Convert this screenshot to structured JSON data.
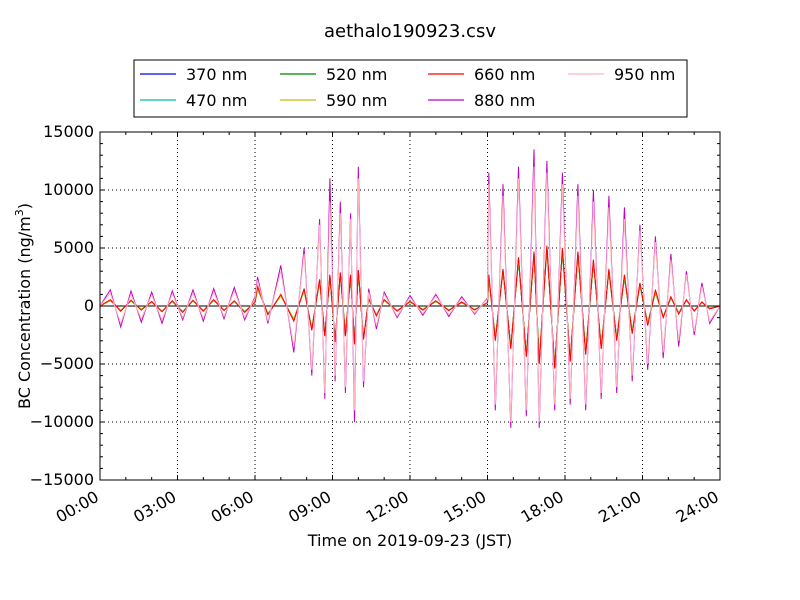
{
  "chart_data": {
    "type": "line",
    "title": "aethalo190923.csv",
    "xlabel": "Time on 2019-09-23 (JST)",
    "ylabel": "BC Concentration (ng/m³)",
    "ylabel_base": "BC Concentration (ng/m",
    "ylabel_sup": "3",
    "ylabel_tail": ")",
    "xlim": [
      "00:00",
      "24:00"
    ],
    "ylim": [
      -15000,
      15000
    ],
    "x_ticks": [
      "00:00",
      "03:00",
      "06:00",
      "09:00",
      "12:00",
      "15:00",
      "18:00",
      "21:00",
      "24:00"
    ],
    "y_ticks": [
      15000,
      10000,
      5000,
      0,
      -5000,
      -10000,
      -15000
    ],
    "y_tick_labels": [
      "15000",
      "10000",
      "5000",
      "0",
      "−5000",
      "−10000",
      "−15000"
    ],
    "grid": true,
    "legend_position": "top",
    "x_hours": [
      0.0,
      0.4,
      0.8,
      1.2,
      1.6,
      2.0,
      2.4,
      2.8,
      3.2,
      3.6,
      4.0,
      4.4,
      4.8,
      5.2,
      5.6,
      6.0,
      6.1,
      6.5,
      7.0,
      7.5,
      7.9,
      8.2,
      8.5,
      8.7,
      8.9,
      9.1,
      9.3,
      9.5,
      9.7,
      9.85,
      10.0,
      10.2,
      10.4,
      10.7,
      11.0,
      11.5,
      12.0,
      12.5,
      13.0,
      13.5,
      14.0,
      14.5,
      15.0,
      15.05,
      15.3,
      15.6,
      15.9,
      16.2,
      16.5,
      16.8,
      17.0,
      17.3,
      17.6,
      17.9,
      18.2,
      18.5,
      18.8,
      19.1,
      19.4,
      19.7,
      20.0,
      20.3,
      20.6,
      20.9,
      21.2,
      21.5,
      21.8,
      22.1,
      22.4,
      22.7,
      23.0,
      23.3,
      23.6,
      24.0
    ],
    "series": [
      {
        "name": "370 nm",
        "color": "#0000ff",
        "values": [
          0,
          500,
          -400,
          450,
          -300,
          350,
          -450,
          400,
          -500,
          450,
          -400,
          500,
          -350,
          400,
          -500,
          300,
          1500,
          -700,
          900,
          -1200,
          1400,
          -2000,
          2200,
          -2500,
          2600,
          -3000,
          2800,
          -2500,
          2600,
          -3200,
          3000,
          -2800,
          600,
          -800,
          500,
          -400,
          350,
          -300,
          400,
          -350,
          300,
          -300,
          250,
          2500,
          -2800,
          3000,
          -3500,
          4000,
          -4200,
          4500,
          -4800,
          5000,
          -5200,
          4800,
          -4600,
          4500,
          -4000,
          3800,
          -3500,
          3000,
          -2800,
          2500,
          -2200,
          1800,
          -1500,
          1200,
          -900,
          700,
          -600,
          500,
          -400,
          300,
          -200,
          0
        ]
      },
      {
        "name": "470 nm",
        "color": "#00c0a0",
        "values": [
          0,
          450,
          -380,
          420,
          -280,
          330,
          -420,
          380,
          -460,
          420,
          -380,
          460,
          -330,
          380,
          -460,
          280,
          1400,
          -650,
          850,
          -1100,
          1300,
          -1900,
          2100,
          -2400,
          2500,
          -2900,
          2700,
          -2400,
          2500,
          -3100,
          2900,
          -2700,
          550,
          -750,
          480,
          -380,
          330,
          -280,
          380,
          -330,
          280,
          -280,
          230,
          2400,
          -2700,
          2900,
          -3400,
          3900,
          -4100,
          4400,
          -4700,
          4900,
          -5100,
          4700,
          -4500,
          4400,
          -3900,
          3700,
          -3400,
          2900,
          -2700,
          2400,
          -2100,
          1700,
          -1400,
          1100,
          -850,
          650,
          -550,
          480,
          -380,
          280,
          -180,
          0
        ]
      },
      {
        "name": "520 nm",
        "color": "#008000",
        "values": [
          0,
          520,
          -420,
          470,
          -320,
          370,
          -470,
          420,
          -520,
          470,
          -420,
          520,
          -370,
          420,
          -520,
          320,
          1600,
          -720,
          950,
          -1250,
          1450,
          -2050,
          2250,
          -2550,
          2650,
          -3050,
          2850,
          -2550,
          2650,
          -3250,
          3050,
          -2850,
          620,
          -820,
          520,
          -420,
          370,
          -320,
          420,
          -370,
          320,
          -320,
          270,
          2600,
          -2900,
          3100,
          -3600,
          4100,
          -4300,
          4600,
          -4900,
          5100,
          -5300,
          4900,
          -4700,
          4600,
          -4100,
          3900,
          -3600,
          3100,
          -2900,
          2600,
          -2300,
          1900,
          -1600,
          1300,
          -950,
          750,
          -650,
          520,
          -420,
          320,
          -220,
          0
        ]
      },
      {
        "name": "590 nm",
        "color": "#c0c000",
        "values": [
          0,
          480,
          -390,
          440,
          -290,
          340,
          -440,
          390,
          -480,
          440,
          -390,
          480,
          -340,
          390,
          -480,
          290,
          1450,
          -680,
          880,
          -1150,
          1350,
          -1950,
          2150,
          -2450,
          2550,
          -2950,
          2750,
          -2450,
          2550,
          -3150,
          2950,
          -2750,
          580,
          -780,
          490,
          -390,
          340,
          -290,
          390,
          -340,
          290,
          -290,
          240,
          2450,
          -2750,
          2950,
          -3450,
          3950,
          -4150,
          4450,
          -4750,
          4950,
          -5150,
          4750,
          -4550,
          4450,
          -3950,
          3750,
          -3450,
          2950,
          -2750,
          2450,
          -2150,
          1750,
          -1450,
          1150,
          -880,
          680,
          -580,
          490,
          -390,
          290,
          -190,
          0
        ]
      },
      {
        "name": "660 nm",
        "color": "#ff0000",
        "values": [
          0,
          550,
          -450,
          500,
          -350,
          400,
          -500,
          450,
          -550,
          500,
          -450,
          550,
          -400,
          450,
          -550,
          350,
          1700,
          -750,
          1000,
          -1300,
          1500,
          -2100,
          2300,
          -2600,
          2700,
          -3100,
          2900,
          -2600,
          2700,
          -3300,
          3100,
          -2900,
          650,
          -850,
          550,
          -450,
          400,
          -350,
          450,
          -400,
          350,
          -350,
          300,
          2700,
          -3000,
          3200,
          -3700,
          4200,
          -4400,
          4700,
          -5000,
          5200,
          -5400,
          5000,
          -4800,
          4700,
          -4200,
          4000,
          -3700,
          3200,
          -3000,
          2700,
          -2400,
          2000,
          -1700,
          1400,
          -1000,
          800,
          -700,
          550,
          -450,
          350,
          -250,
          0
        ]
      },
      {
        "name": "880 nm",
        "color": "#c000c0",
        "values": [
          0,
          1400,
          -1800,
          1300,
          -1400,
          1200,
          -1500,
          1300,
          -1200,
          1400,
          -1300,
          1500,
          -1100,
          1600,
          -1200,
          800,
          2500,
          -1500,
          3500,
          -4000,
          5000,
          -6000,
          7500,
          -8000,
          11000,
          -6500,
          9000,
          -7500,
          8000,
          -10000,
          12000,
          -7000,
          1500,
          -2000,
          1200,
          -1000,
          900,
          -800,
          1000,
          -900,
          800,
          -700,
          700,
          11500,
          -9000,
          10500,
          -10500,
          12000,
          -9500,
          13500,
          -10500,
          12500,
          -9000,
          11500,
          -8500,
          10500,
          -9000,
          10000,
          -8000,
          9500,
          -7500,
          8500,
          -6500,
          7000,
          -5500,
          6000,
          -4500,
          4500,
          -3500,
          3000,
          -2500,
          2000,
          -1500,
          0
        ]
      },
      {
        "name": "950 nm",
        "color": "#ffb6c1",
        "values": [
          0,
          1100,
          -1500,
          1000,
          -1100,
          950,
          -1200,
          1050,
          -1000,
          1100,
          -1050,
          1200,
          -900,
          1300,
          -1000,
          650,
          2200,
          -1300,
          3000,
          -3500,
          4500,
          -5500,
          7000,
          -7500,
          9000,
          -6000,
          8000,
          -7000,
          7500,
          -9000,
          11000,
          -6500,
          1200,
          -1700,
          1000,
          -850,
          750,
          -650,
          850,
          -750,
          650,
          -600,
          600,
          10500,
          -8500,
          9500,
          -10000,
          11000,
          -9000,
          12000,
          -10000,
          11500,
          -8500,
          10500,
          -8000,
          9500,
          -8500,
          9000,
          -7500,
          8500,
          -7000,
          7500,
          -6000,
          6500,
          -5000,
          5500,
          -4000,
          4000,
          -3000,
          2700,
          -2200,
          1700,
          -1300,
          0
        ]
      }
    ]
  }
}
